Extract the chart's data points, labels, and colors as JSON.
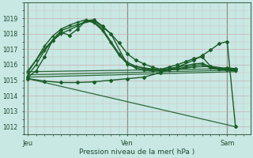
{
  "bg_color": "#c8e8e4",
  "grid_minor_color": "#d4b8b8",
  "grid_major_color": "#c8a0a0",
  "line_color": "#1a5c28",
  "ylim": [
    1011.5,
    1019.5
  ],
  "yticks": [
    1012,
    1013,
    1014,
    1015,
    1016,
    1017,
    1018,
    1019
  ],
  "day_labels": [
    "Jeu",
    "Ven",
    "Sam"
  ],
  "day_positions": [
    0.0,
    0.4615,
    0.923
  ],
  "xlabel": "Pression niveau de la mer( hPa )",
  "xlim": [
    -0.02,
    1.03
  ],
  "total_steps": 26,
  "lines": [
    {
      "x": [
        0,
        1,
        2,
        3,
        4,
        5,
        6,
        7,
        8,
        9,
        10,
        11,
        12,
        13,
        14,
        15,
        16,
        17,
        18,
        19,
        20,
        21,
        22,
        23,
        24,
        25
      ],
      "y": [
        1015.2,
        1015.6,
        1016.5,
        1017.6,
        1018.1,
        1017.9,
        1018.3,
        1018.85,
        1018.9,
        1018.5,
        1018.0,
        1017.4,
        1016.7,
        1016.3,
        1016.05,
        1015.85,
        1015.7,
        1015.85,
        1016.0,
        1016.2,
        1016.4,
        1016.5,
        1015.9,
        1015.75,
        1015.8,
        1015.75
      ],
      "marker": "D",
      "ms": 2.0,
      "lw": 1.0,
      "alpha": 1.0
    },
    {
      "x": [
        0,
        1,
        2,
        3,
        4,
        5,
        6,
        7,
        8,
        9,
        10,
        11,
        12,
        13,
        14,
        15,
        16,
        17,
        18,
        19,
        20,
        21,
        22,
        23,
        24,
        25
      ],
      "y": [
        1015.5,
        1016.3,
        1017.2,
        1017.85,
        1018.3,
        1018.55,
        1018.75,
        1018.9,
        1018.75,
        1018.3,
        1017.5,
        1016.7,
        1016.15,
        1015.9,
        1015.75,
        1015.7,
        1015.7,
        1015.75,
        1015.85,
        1015.95,
        1016.05,
        1016.1,
        1015.85,
        1015.75,
        1015.7,
        1015.65
      ],
      "marker": "+",
      "ms": 3.0,
      "lw": 1.0,
      "alpha": 1.0
    },
    {
      "x": [
        0,
        1,
        2,
        3,
        4,
        5,
        6,
        7,
        8,
        9,
        10,
        11,
        12,
        13,
        14,
        15,
        16,
        17,
        18,
        19,
        20,
        21,
        22,
        23,
        24,
        25
      ],
      "y": [
        1015.3,
        1016.0,
        1016.9,
        1017.55,
        1018.0,
        1018.25,
        1018.5,
        1018.85,
        1018.7,
        1018.2,
        1017.4,
        1016.6,
        1016.05,
        1015.8,
        1015.65,
        1015.6,
        1015.6,
        1015.65,
        1015.75,
        1015.85,
        1015.95,
        1016.0,
        1015.8,
        1015.7,
        1015.65,
        1015.6
      ],
      "marker": "+",
      "ms": 3.0,
      "lw": 1.0,
      "alpha": 1.0
    },
    {
      "x": [
        0,
        2,
        4,
        6,
        8,
        10,
        12,
        14,
        16,
        18,
        20,
        22,
        24,
        25
      ],
      "y": [
        1015.6,
        1017.0,
        1018.2,
        1018.6,
        1018.85,
        1018.0,
        1016.0,
        1015.8,
        1015.65,
        1015.7,
        1015.85,
        1015.9,
        1015.75,
        1015.7
      ],
      "marker": "+",
      "ms": 3.5,
      "lw": 1.0,
      "alpha": 1.0
    },
    {
      "x": [
        0,
        25
      ],
      "y": [
        1015.55,
        1015.75
      ],
      "marker": null,
      "ms": 0,
      "lw": 0.9,
      "alpha": 0.9
    },
    {
      "x": [
        0,
        25
      ],
      "y": [
        1015.35,
        1015.65
      ],
      "marker": null,
      "ms": 0,
      "lw": 0.9,
      "alpha": 0.9
    },
    {
      "x": [
        0,
        25
      ],
      "y": [
        1015.2,
        1015.55
      ],
      "marker": null,
      "ms": 0,
      "lw": 0.9,
      "alpha": 0.9
    },
    {
      "x": [
        0,
        25
      ],
      "y": [
        1015.1,
        1012.0
      ],
      "marker": null,
      "ms": 0,
      "lw": 0.9,
      "alpha": 0.9
    },
    {
      "x": [
        0,
        2,
        4,
        6,
        8,
        10,
        12,
        14,
        16,
        18,
        20,
        21,
        22,
        23,
        24,
        25
      ],
      "y": [
        1015.1,
        1014.95,
        1014.85,
        1014.85,
        1014.9,
        1015.0,
        1015.1,
        1015.2,
        1015.5,
        1015.85,
        1016.3,
        1016.6,
        1016.95,
        1017.35,
        1017.5,
        1012.0
      ],
      "marker": "D",
      "ms": 2.0,
      "lw": 1.0,
      "alpha": 1.0
    }
  ]
}
